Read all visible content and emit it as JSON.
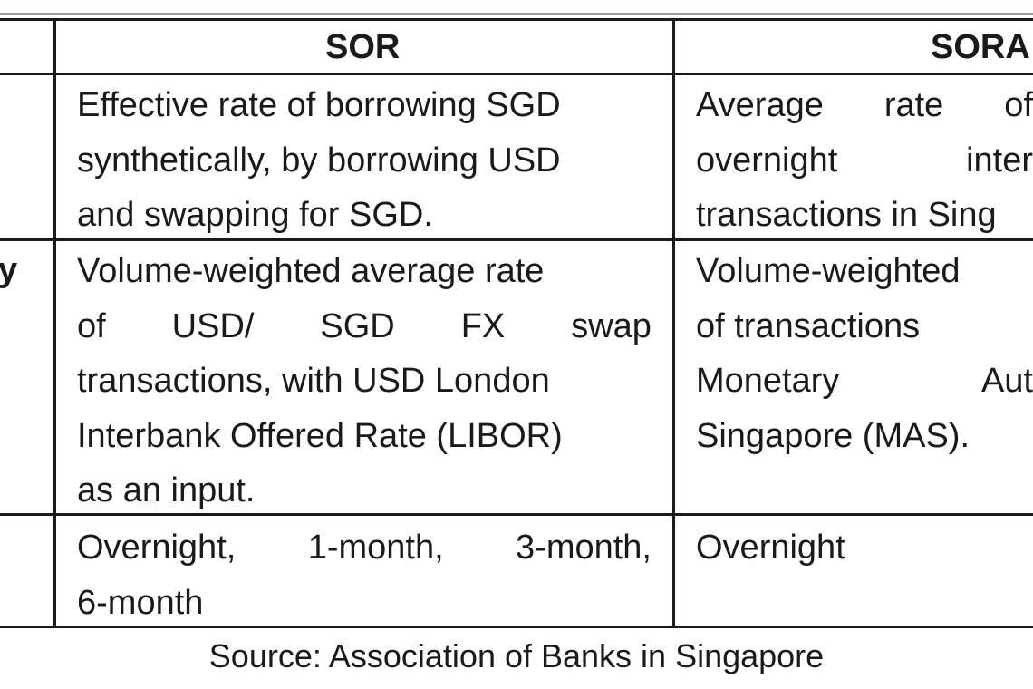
{
  "table": {
    "headers": {
      "sor": "SOR",
      "sora": "SORA"
    },
    "row_labels": [
      "",
      "y",
      ""
    ],
    "rows": [
      {
        "sor_lines": [
          [
            "Effective rate of borrowing SGD"
          ],
          [
            "synthetically, by borrowing USD"
          ],
          [
            "and swapping for SGD."
          ]
        ],
        "sora_lines": [
          [
            "Average",
            "rate",
            "of"
          ],
          [
            "overnight",
            "inter"
          ],
          [
            "transactions in Sing"
          ]
        ]
      },
      {
        "sor_lines": [
          [
            "Volume-weighted average rate"
          ],
          [
            "of",
            "USD/",
            "SGD",
            "FX",
            "swap"
          ],
          [
            "transactions, with USD London"
          ],
          [
            "Interbank Offered Rate (LIBOR)"
          ],
          [
            "as an input."
          ]
        ],
        "sora_lines": [
          [
            "Volume-weighted"
          ],
          [
            "of transactions"
          ],
          [
            "Monetary",
            "Aut"
          ],
          [
            "Singapore (MAS)."
          ]
        ]
      },
      {
        "sor_lines": [
          [
            "Overnight,",
            "1-month,",
            "3-month,"
          ],
          [
            "6-month"
          ]
        ],
        "sora_lines": [
          [
            "Overnight"
          ]
        ]
      }
    ]
  },
  "source_note": "Source: Association of Banks in Singapore"
}
